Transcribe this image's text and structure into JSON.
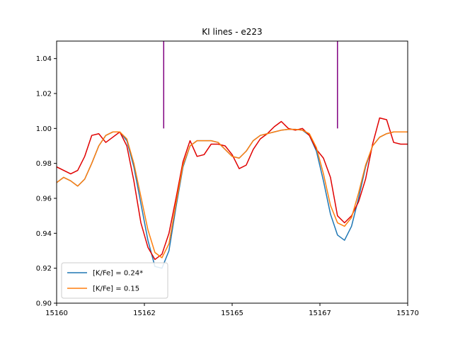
{
  "chart_data": {
    "type": "line",
    "title": "KI lines - e223",
    "xlabel": "",
    "ylabel": "",
    "xlim": [
      15160,
      15170
    ],
    "ylim": [
      0.9,
      1.05
    ],
    "x_ticks": [
      15160,
      15162.5,
      15165,
      15167.5,
      15170
    ],
    "x_tick_labels": [
      "15160",
      "15162",
      "15165",
      "15167",
      "15170"
    ],
    "y_ticks": [
      0.9,
      0.92,
      0.94,
      0.96,
      0.98,
      1.0,
      1.02,
      1.04
    ],
    "y_tick_labels": [
      "0.90",
      "0.92",
      "0.94",
      "0.96",
      "0.98",
      "1.00",
      "1.02",
      "1.04"
    ],
    "grid": false,
    "legend_position": "lower-left",
    "line_markers": {
      "color": "#800080",
      "x": [
        15163.05,
        15168.0
      ],
      "y_from": 1.0,
      "y_to": 1.05
    },
    "series": [
      {
        "name": "[K/Fe] = 0.24*",
        "color": "#1f77b4",
        "in_legend": true,
        "x": [
          15160.0,
          15160.2,
          15160.4,
          15160.6,
          15160.8,
          15161.0,
          15161.2,
          15161.4,
          15161.6,
          15161.8,
          15162.0,
          15162.2,
          15162.4,
          15162.6,
          15162.8,
          15163.0,
          15163.2,
          15163.4,
          15163.6,
          15163.8,
          15164.0,
          15164.2,
          15164.4,
          15164.6,
          15164.8,
          15165.0,
          15165.2,
          15165.4,
          15165.6,
          15165.8,
          15166.0,
          15166.2,
          15166.4,
          15166.6,
          15166.8,
          15167.0,
          15167.2,
          15167.4,
          15167.6,
          15167.8,
          15168.0,
          15168.2,
          15168.4,
          15168.6,
          15168.8,
          15169.0,
          15169.2,
          15169.4,
          15169.6,
          15169.8,
          15170.0
        ],
        "y": [
          0.969,
          0.972,
          0.97,
          0.967,
          0.971,
          0.98,
          0.99,
          0.996,
          0.998,
          0.998,
          0.993,
          0.978,
          0.957,
          0.936,
          0.921,
          0.92,
          0.93,
          0.955,
          0.978,
          0.99,
          0.993,
          0.993,
          0.993,
          0.992,
          0.988,
          0.984,
          0.983,
          0.987,
          0.993,
          0.996,
          0.997,
          0.998,
          0.999,
          0.9995,
          0.9995,
          0.999,
          0.996,
          0.987,
          0.97,
          0.951,
          0.939,
          0.936,
          0.944,
          0.96,
          0.978,
          0.99,
          0.995,
          0.997,
          0.998,
          0.998,
          0.998
        ]
      },
      {
        "name": "[K/Fe] = 0.15",
        "color": "#ff7f0e",
        "in_legend": true,
        "x": [
          15160.0,
          15160.2,
          15160.4,
          15160.6,
          15160.8,
          15161.0,
          15161.2,
          15161.4,
          15161.6,
          15161.8,
          15162.0,
          15162.2,
          15162.4,
          15162.6,
          15162.8,
          15163.0,
          15163.2,
          15163.4,
          15163.6,
          15163.8,
          15164.0,
          15164.2,
          15164.4,
          15164.6,
          15164.8,
          15165.0,
          15165.2,
          15165.4,
          15165.6,
          15165.8,
          15166.0,
          15166.2,
          15166.4,
          15166.6,
          15166.8,
          15167.0,
          15167.2,
          15167.4,
          15167.6,
          15167.8,
          15168.0,
          15168.2,
          15168.4,
          15168.6,
          15168.8,
          15169.0,
          15169.2,
          15169.4,
          15169.6,
          15169.8,
          15170.0
        ],
        "y": [
          0.969,
          0.972,
          0.97,
          0.967,
          0.971,
          0.98,
          0.99,
          0.996,
          0.998,
          0.998,
          0.994,
          0.98,
          0.961,
          0.942,
          0.929,
          0.926,
          0.934,
          0.957,
          0.979,
          0.99,
          0.993,
          0.993,
          0.993,
          0.992,
          0.988,
          0.984,
          0.983,
          0.987,
          0.993,
          0.996,
          0.997,
          0.998,
          0.999,
          0.9995,
          0.9995,
          0.999,
          0.997,
          0.989,
          0.974,
          0.956,
          0.946,
          0.944,
          0.949,
          0.963,
          0.979,
          0.99,
          0.995,
          0.997,
          0.998,
          0.998,
          0.998
        ]
      },
      {
        "name": "",
        "color": "#e00000",
        "in_legend": false,
        "x": [
          15160.0,
          15160.4,
          15160.6,
          15160.8,
          15161.0,
          15161.2,
          15161.4,
          15161.6,
          15161.8,
          15162.0,
          15162.2,
          15162.4,
          15162.6,
          15162.8,
          15163.0,
          15163.2,
          15163.4,
          15163.6,
          15163.8,
          15164.0,
          15164.2,
          15164.4,
          15164.6,
          15164.8,
          15165.0,
          15165.2,
          15165.4,
          15165.6,
          15165.8,
          15166.0,
          15166.2,
          15166.4,
          15166.6,
          15166.8,
          15167.0,
          15167.2,
          15167.4,
          15167.6,
          15167.8,
          15168.0,
          15168.2,
          15168.4,
          15168.6,
          15168.8,
          15169.0,
          15169.2,
          15169.4,
          15169.6,
          15169.8,
          15170.0
        ],
        "y": [
          0.978,
          0.974,
          0.976,
          0.984,
          0.996,
          0.997,
          0.992,
          0.995,
          0.998,
          0.99,
          0.97,
          0.946,
          0.932,
          0.925,
          0.928,
          0.94,
          0.96,
          0.981,
          0.993,
          0.984,
          0.985,
          0.991,
          0.991,
          0.99,
          0.985,
          0.977,
          0.979,
          0.988,
          0.994,
          0.997,
          1.001,
          1.004,
          1.0,
          0.999,
          1.0,
          0.996,
          0.988,
          0.983,
          0.972,
          0.95,
          0.946,
          0.95,
          0.958,
          0.971,
          0.991,
          1.006,
          1.005,
          0.992,
          0.991,
          0.991
        ]
      }
    ]
  }
}
